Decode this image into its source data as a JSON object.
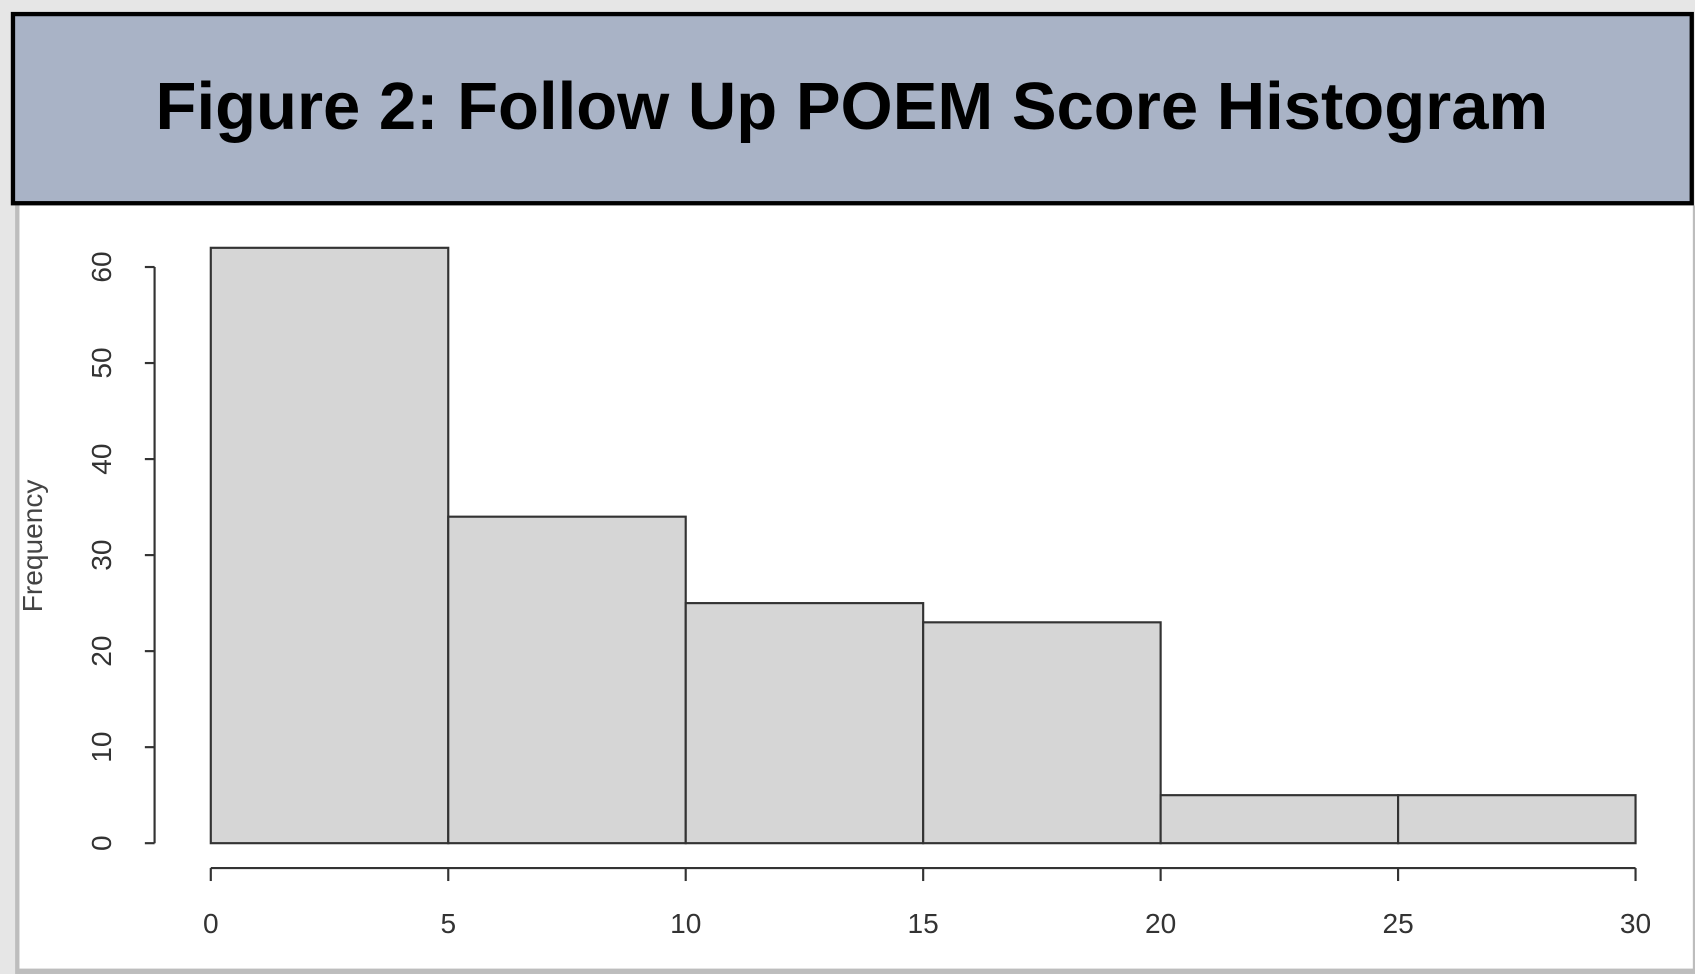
{
  "chart_data": {
    "type": "histogram",
    "title": "Figure 2: Follow Up POEM Score Histogram",
    "y_label": "Frequency",
    "bins": [
      0,
      5,
      10,
      15,
      20,
      25,
      30
    ],
    "values": [
      62,
      34,
      25,
      23,
      5,
      5
    ],
    "color": "#d6d6d6",
    "xlim": [
      0,
      30
    ],
    "xticks": [
      0,
      5,
      10,
      15,
      20,
      25,
      30
    ],
    "ylim": [
      0,
      60
    ],
    "yticks": [
      0,
      10,
      20,
      30,
      40,
      50,
      60
    ]
  }
}
